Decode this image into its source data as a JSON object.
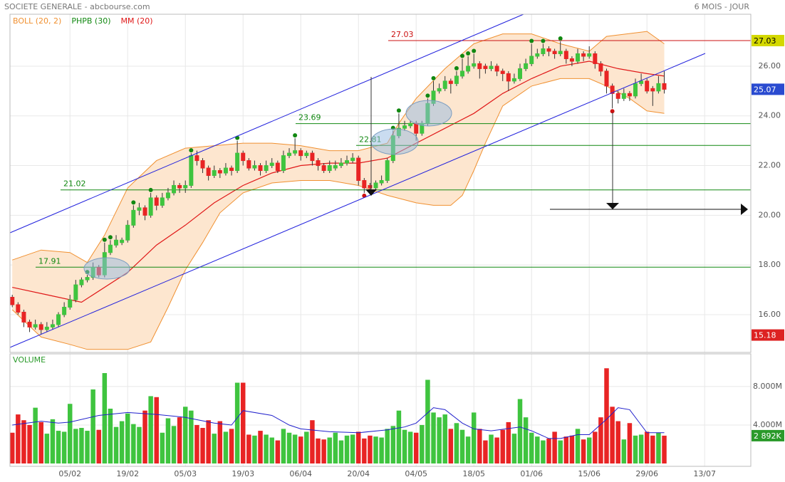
{
  "header": {
    "title": "SOCIETE GENERALE - abcbourse.com",
    "period": "6 MOIS - JOUR"
  },
  "chart_data": [
    {
      "type": "candlestick",
      "colors": {
        "up": "#3fc43f",
        "down": "#e82424"
      },
      "xlim": [
        -0.4,
        128
      ],
      "xticks": [
        {
          "value": 10,
          "label": "05/02"
        },
        {
          "value": 20,
          "label": "19/02"
        },
        {
          "value": 30,
          "label": "05/03"
        },
        {
          "value": 40,
          "label": "19/03"
        },
        {
          "value": 50,
          "label": "06/04"
        },
        {
          "value": 60,
          "label": "20/04"
        },
        {
          "value": 70,
          "label": "04/05"
        },
        {
          "value": 80,
          "label": "18/05"
        },
        {
          "value": 90,
          "label": "01/06"
        },
        {
          "value": 100,
          "label": "15/06"
        },
        {
          "value": 110,
          "label": "29/06"
        },
        {
          "value": 120,
          "label": "13/07"
        }
      ],
      "ylim": [
        14.48,
        28.09
      ],
      "yticks": [
        {
          "value": 16,
          "label": "16.00"
        },
        {
          "value": 18,
          "label": "18.00"
        },
        {
          "value": 20,
          "label": "20.00"
        },
        {
          "value": 22,
          "label": "22.00"
        },
        {
          "value": 24,
          "label": "24.00"
        },
        {
          "value": 26,
          "label": "26.00"
        }
      ],
      "grid": true,
      "ohlc": [
        [
          16.7,
          16.8,
          16.3,
          16.4
        ],
        [
          16.4,
          16.5,
          16.0,
          16.1
        ],
        [
          16.1,
          16.2,
          15.5,
          15.7
        ],
        [
          15.7,
          15.8,
          15.3,
          15.5
        ],
        [
          15.5,
          15.8,
          15.4,
          15.6
        ],
        [
          15.6,
          15.7,
          15.2,
          15.4
        ],
        [
          15.4,
          15.7,
          15.3,
          15.5
        ],
        [
          15.5,
          15.8,
          15.4,
          15.6
        ],
        [
          15.6,
          16.1,
          15.5,
          16.0
        ],
        [
          16.0,
          16.5,
          15.9,
          16.3
        ],
        [
          16.3,
          16.8,
          16.2,
          16.6
        ],
        [
          16.6,
          17.4,
          16.5,
          17.2
        ],
        [
          17.2,
          17.5,
          17.1,
          17.4
        ],
        [
          17.4,
          17.6,
          17.3,
          17.5
        ],
        [
          17.5,
          18.1,
          17.4,
          17.9
        ],
        [
          17.9,
          18.0,
          17.5,
          17.6
        ],
        [
          17.6,
          18.9,
          17.5,
          18.5
        ],
        [
          18.5,
          19.0,
          18.4,
          18.8
        ],
        [
          18.8,
          19.2,
          18.7,
          19.0
        ],
        [
          18.9,
          19.1,
          18.8,
          19.0
        ],
        [
          19.0,
          19.8,
          18.9,
          19.6
        ],
        [
          19.6,
          20.4,
          19.5,
          20.2
        ],
        [
          20.2,
          20.5,
          20.0,
          20.3
        ],
        [
          20.3,
          20.4,
          19.8,
          20.0
        ],
        [
          20.0,
          20.9,
          19.9,
          20.7
        ],
        [
          20.7,
          20.8,
          20.2,
          20.4
        ],
        [
          20.4,
          20.9,
          20.3,
          20.7
        ],
        [
          20.7,
          21.1,
          20.6,
          20.9
        ],
        [
          20.9,
          21.4,
          20.8,
          21.2
        ],
        [
          21.2,
          21.3,
          20.9,
          21.1
        ],
        [
          21.1,
          21.4,
          20.9,
          21.2
        ],
        [
          21.2,
          22.5,
          21.1,
          22.4
        ],
        [
          22.4,
          22.6,
          22.0,
          22.2
        ],
        [
          22.2,
          22.3,
          21.7,
          21.9
        ],
        [
          21.9,
          22.0,
          21.4,
          21.6
        ],
        [
          21.6,
          22.0,
          21.5,
          21.8
        ],
        [
          21.8,
          21.9,
          21.5,
          21.7
        ],
        [
          21.7,
          22.1,
          21.6,
          21.9
        ],
        [
          21.9,
          22.0,
          21.6,
          21.8
        ],
        [
          21.8,
          23.0,
          21.7,
          22.5
        ],
        [
          22.5,
          22.6,
          22.0,
          22.2
        ],
        [
          22.2,
          22.3,
          21.8,
          21.9
        ],
        [
          21.9,
          22.2,
          21.8,
          22.0
        ],
        [
          22.0,
          22.1,
          21.6,
          21.8
        ],
        [
          21.8,
          22.2,
          21.7,
          22.0
        ],
        [
          22.0,
          22.3,
          21.9,
          22.1
        ],
        [
          22.1,
          22.2,
          21.7,
          21.8
        ],
        [
          21.8,
          22.6,
          21.7,
          22.4
        ],
        [
          22.4,
          22.7,
          22.3,
          22.5
        ],
        [
          22.5,
          23.1,
          22.4,
          22.6
        ],
        [
          22.6,
          22.7,
          22.2,
          22.4
        ],
        [
          22.4,
          22.6,
          22.3,
          22.5
        ],
        [
          22.5,
          22.6,
          22.0,
          22.2
        ],
        [
          22.2,
          22.3,
          21.8,
          22.0
        ],
        [
          22.0,
          22.1,
          21.7,
          21.8
        ],
        [
          21.8,
          22.2,
          21.7,
          22.0
        ],
        [
          21.9,
          22.2,
          21.8,
          22.0
        ],
        [
          22.0,
          22.3,
          21.9,
          22.1
        ],
        [
          22.1,
          22.4,
          22.0,
          22.2
        ],
        [
          22.2,
          22.5,
          22.1,
          22.3
        ],
        [
          22.3,
          22.4,
          21.2,
          21.4
        ],
        [
          21.4,
          21.5,
          20.9,
          21.1
        ],
        [
          21.2,
          21.3,
          21.0,
          21.1
        ],
        [
          21.1,
          21.4,
          21.0,
          21.3
        ],
        [
          21.3,
          21.6,
          21.2,
          21.4
        ],
        [
          21.4,
          22.3,
          21.3,
          22.2
        ],
        [
          22.2,
          23.4,
          22.1,
          23.2
        ],
        [
          23.2,
          24.1,
          23.1,
          23.5
        ],
        [
          23.5,
          23.8,
          23.4,
          23.6
        ],
        [
          23.6,
          23.8,
          23.5,
          23.7
        ],
        [
          23.7,
          23.8,
          23.0,
          23.3
        ],
        [
          23.3,
          23.8,
          23.2,
          23.7
        ],
        [
          23.7,
          24.7,
          23.6,
          24.5
        ],
        [
          24.5,
          25.4,
          24.4,
          25.0
        ],
        [
          25.0,
          25.3,
          24.9,
          25.1
        ],
        [
          25.1,
          25.6,
          25.0,
          25.4
        ],
        [
          25.4,
          25.5,
          24.9,
          25.3
        ],
        [
          25.3,
          25.8,
          25.2,
          25.6
        ],
        [
          25.6,
          26.3,
          25.5,
          25.8
        ],
        [
          25.8,
          26.4,
          25.7,
          26.0
        ],
        [
          26.0,
          26.5,
          25.9,
          26.1
        ],
        [
          26.1,
          26.2,
          25.5,
          25.9
        ],
        [
          26.0,
          26.1,
          25.7,
          25.9
        ],
        [
          25.9,
          26.2,
          25.8,
          26.0
        ],
        [
          26.0,
          26.1,
          25.6,
          25.8
        ],
        [
          25.8,
          25.9,
          25.4,
          25.7
        ],
        [
          25.7,
          25.8,
          25.0,
          25.4
        ],
        [
          25.4,
          25.7,
          25.3,
          25.5
        ],
        [
          25.5,
          26.1,
          25.4,
          25.9
        ],
        [
          25.9,
          26.3,
          25.8,
          26.1
        ],
        [
          26.1,
          26.9,
          26.0,
          26.4
        ],
        [
          26.4,
          26.7,
          26.3,
          26.5
        ],
        [
          26.5,
          26.9,
          26.4,
          26.7
        ],
        [
          26.7,
          26.8,
          26.4,
          26.6
        ],
        [
          26.6,
          26.7,
          26.3,
          26.5
        ],
        [
          26.5,
          27.0,
          26.4,
          26.6
        ],
        [
          26.6,
          26.7,
          26.1,
          26.3
        ],
        [
          26.3,
          26.4,
          26.0,
          26.2
        ],
        [
          26.2,
          26.7,
          26.1,
          26.5
        ],
        [
          26.5,
          26.6,
          26.2,
          26.4
        ],
        [
          26.4,
          26.8,
          26.3,
          26.5
        ],
        [
          26.5,
          26.6,
          25.9,
          26.1
        ],
        [
          26.1,
          26.2,
          25.6,
          25.8
        ],
        [
          25.8,
          25.9,
          24.9,
          25.2
        ],
        [
          25.2,
          25.3,
          24.3,
          24.9
        ],
        [
          24.9,
          25.0,
          24.5,
          24.7
        ],
        [
          24.7,
          25.1,
          24.6,
          24.9
        ],
        [
          24.9,
          25.0,
          24.6,
          24.8
        ],
        [
          24.8,
          25.5,
          24.7,
          25.3
        ],
        [
          25.3,
          25.7,
          25.2,
          25.4
        ],
        [
          25.4,
          25.5,
          24.9,
          25.0
        ],
        [
          25.1,
          25.2,
          24.4,
          25.0
        ],
        [
          25.0,
          25.6,
          24.9,
          25.3
        ],
        [
          25.3,
          25.8,
          24.9,
          25.07
        ]
      ],
      "bollinger": {
        "name": "BOLL (20, 2)",
        "color": "#f09030",
        "fill": "#fde6cf",
        "upper": {
          "x": [
            0,
            5,
            10,
            13,
            16,
            20,
            25,
            30,
            35,
            40,
            45,
            50,
            55,
            60,
            65,
            67,
            70,
            75,
            80,
            85,
            90,
            95,
            100,
            103,
            110,
            113
          ],
          "values": [
            18.2,
            18.6,
            18.5,
            18.1,
            19.2,
            21.1,
            22.2,
            22.7,
            22.8,
            22.9,
            22.9,
            22.8,
            22.6,
            22.6,
            22.9,
            23.7,
            24.7,
            25.9,
            26.9,
            27.3,
            27.3,
            26.9,
            26.6,
            27.2,
            27.4,
            26.9
          ]
        },
        "lower": {
          "x": [
            0,
            5,
            10,
            13,
            16,
            20,
            24,
            27,
            30,
            33,
            36,
            40,
            45,
            50,
            55,
            60,
            65,
            70,
            73,
            76,
            78,
            80,
            82,
            85,
            90,
            95,
            100,
            103,
            107,
            110,
            113
          ],
          "values": [
            16.2,
            15.1,
            14.8,
            14.6,
            14.6,
            14.6,
            14.9,
            16.3,
            17.8,
            18.9,
            20.1,
            20.9,
            21.3,
            21.4,
            21.4,
            21.2,
            20.8,
            20.5,
            20.4,
            20.4,
            20.8,
            21.8,
            22.9,
            24.4,
            25.2,
            25.5,
            25.5,
            25.2,
            24.7,
            24.2,
            24.1
          ]
        }
      },
      "phpb": {
        "name": "PHPB (30)",
        "color": "#118811",
        "low_color": "#cc1111",
        "highs": [
          13,
          16,
          17,
          21,
          24,
          31,
          39,
          49,
          66,
          67,
          72,
          73,
          77,
          78,
          79,
          80,
          90,
          92,
          95
        ],
        "lows": [
          61,
          104
        ]
      },
      "ma": {
        "name": "MM (20)",
        "color": "#e01818",
        "x": [
          0,
          6,
          12,
          20,
          25,
          30,
          35,
          40,
          45,
          50,
          55,
          60,
          65,
          70,
          75,
          80,
          85,
          90,
          95,
          100,
          105,
          110,
          113
        ],
        "values": [
          17.1,
          16.8,
          16.5,
          17.7,
          18.8,
          19.6,
          20.5,
          21.2,
          21.7,
          22.0,
          22.1,
          22.1,
          22.3,
          22.9,
          23.5,
          24.1,
          24.9,
          25.5,
          26.0,
          26.2,
          25.9,
          25.7,
          25.6
        ]
      },
      "levels": [
        {
          "value": 27.03,
          "color": "#cc1111"
        },
        {
          "value": 23.69,
          "color": "#118811"
        },
        {
          "value": 22.81,
          "color": "#118811"
        },
        {
          "value": 21.02,
          "color": "#118811"
        },
        {
          "value": 17.91,
          "color": "#118811"
        }
      ],
      "level_box_color": "#d4d800",
      "last_box_color": "#2a4bd0",
      "min_label": 15.18,
      "min_box_color": "#dd2222"
    },
    {
      "type": "volume",
      "title": "VOLUME",
      "ylim": [
        0,
        11.4
      ],
      "yticks": [
        {
          "value": 4,
          "label": "4.000M"
        },
        {
          "value": 8,
          "label": "8.000M"
        }
      ],
      "values": [
        3.2,
        5.1,
        4.5,
        4.0,
        5.8,
        4.3,
        3.1,
        4.6,
        3.4,
        3.3,
        6.2,
        3.6,
        3.7,
        3.4,
        7.7,
        3.5,
        9.4,
        5.7,
        3.8,
        4.4,
        5.2,
        4.1,
        3.8,
        5.5,
        7.0,
        6.9,
        3.2,
        4.7,
        3.9,
        4.8,
        5.9,
        5.5,
        4.0,
        3.7,
        4.5,
        3.1,
        4.4,
        3.3,
        3.6,
        8.4,
        8.4,
        3.0,
        2.9,
        3.4,
        3.0,
        2.7,
        2.4,
        3.6,
        3.2,
        3.0,
        2.8,
        3.3,
        4.5,
        2.6,
        2.5,
        2.7,
        3.2,
        2.4,
        2.9,
        3.0,
        3.3,
        2.6,
        2.9,
        2.8,
        2.7,
        3.6,
        3.9,
        5.5,
        3.5,
        3.3,
        3.2,
        4.0,
        8.7,
        5.3,
        4.8,
        5.1,
        3.6,
        4.2,
        3.5,
        2.8,
        5.3,
        3.6,
        2.4,
        3.0,
        2.7,
        3.5,
        4.3,
        3.1,
        6.7,
        4.8,
        3.2,
        2.8,
        2.4,
        2.6,
        3.3,
        2.4,
        2.8,
        2.9,
        3.6,
        2.5,
        2.7,
        3.3,
        4.8,
        9.9,
        5.9,
        4.4,
        2.5,
        4.2,
        2.9,
        3.0,
        3.3,
        2.9,
        3.2,
        2.892
      ],
      "last_label": {
        "value": 2.892,
        "label": "2 892K"
      },
      "last_box_color": "#2a9a2a",
      "ma": {
        "color": "#2020cc",
        "x": [
          0,
          5,
          8,
          10,
          15,
          20,
          25,
          30,
          35,
          38,
          40,
          45,
          48,
          50,
          55,
          60,
          65,
          68,
          70,
          73,
          75,
          78,
          80,
          83,
          88,
          90,
          93,
          95,
          98,
          100,
          103,
          105,
          107,
          109,
          110,
          113
        ],
        "values": [
          4.0,
          4.4,
          4.2,
          4.3,
          5.0,
          5.3,
          5.1,
          4.8,
          4.2,
          4.0,
          5.5,
          5.0,
          4.0,
          3.6,
          3.3,
          3.2,
          3.5,
          3.8,
          4.2,
          5.8,
          5.6,
          4.2,
          3.6,
          3.4,
          3.8,
          3.4,
          2.6,
          2.6,
          3.0,
          3.0,
          4.6,
          5.8,
          5.6,
          4.0,
          3.2,
          3.2
        ]
      }
    }
  ]
}
